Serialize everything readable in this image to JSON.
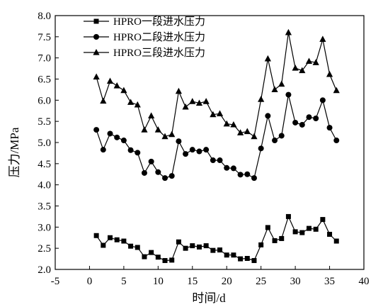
{
  "chart_data": {
    "type": "line",
    "xlabel": "时间/d",
    "ylabel": "压力/MPa",
    "xlim": [
      -5,
      40
    ],
    "ylim": [
      2.0,
      8.0
    ],
    "xticks": [
      -5,
      0,
      5,
      10,
      15,
      20,
      25,
      30,
      35,
      40
    ],
    "yticks": [
      2.0,
      2.5,
      3.0,
      3.5,
      4.0,
      4.5,
      5.0,
      5.5,
      6.0,
      6.5,
      7.0,
      7.5,
      8.0
    ],
    "grid": false,
    "legend_position": "top-left",
    "series": [
      {
        "name": "HPRO一段进水压力",
        "marker": "square",
        "x": [
          1,
          2,
          3,
          4,
          5,
          6,
          7,
          8,
          9,
          10,
          11,
          12,
          13,
          14,
          15,
          16,
          17,
          18,
          19,
          20,
          21,
          22,
          23,
          24,
          25,
          26,
          27,
          28,
          29,
          30,
          31,
          32,
          33,
          34,
          35,
          36
        ],
        "y": [
          2.8,
          2.57,
          2.75,
          2.7,
          2.67,
          2.55,
          2.52,
          2.3,
          2.4,
          2.29,
          2.21,
          2.22,
          2.65,
          2.5,
          2.56,
          2.53,
          2.56,
          2.45,
          2.46,
          2.34,
          2.34,
          2.25,
          2.26,
          2.21,
          2.58,
          2.99,
          2.68,
          2.73,
          3.25,
          2.89,
          2.87,
          2.97,
          2.95,
          3.18,
          2.83,
          2.67
        ]
      },
      {
        "name": "HPRO二段进水压力",
        "marker": "circle",
        "x": [
          1,
          2,
          3,
          4,
          5,
          6,
          7,
          8,
          9,
          10,
          11,
          12,
          13,
          14,
          15,
          16,
          17,
          18,
          19,
          20,
          21,
          22,
          23,
          24,
          25,
          26,
          27,
          28,
          29,
          30,
          31,
          32,
          33,
          34,
          35,
          36
        ],
        "y": [
          5.3,
          4.83,
          5.21,
          5.12,
          5.05,
          4.82,
          4.76,
          4.28,
          4.55,
          4.3,
          4.16,
          4.21,
          5.03,
          4.73,
          4.83,
          4.79,
          4.83,
          4.58,
          4.58,
          4.4,
          4.39,
          4.24,
          4.25,
          4.16,
          4.86,
          5.63,
          5.05,
          5.16,
          6.13,
          5.47,
          5.42,
          5.6,
          5.57,
          6.0,
          5.35,
          5.05
        ]
      },
      {
        "name": "HPRO三段进水压力",
        "marker": "triangle",
        "x": [
          1,
          2,
          3,
          4,
          5,
          6,
          7,
          8,
          9,
          10,
          11,
          12,
          13,
          14,
          15,
          16,
          17,
          18,
          19,
          20,
          21,
          22,
          23,
          24,
          25,
          26,
          27,
          28,
          29,
          30,
          31,
          32,
          33,
          34,
          35,
          36
        ],
        "y": [
          6.55,
          5.98,
          6.45,
          6.34,
          6.23,
          5.95,
          5.89,
          5.3,
          5.63,
          5.3,
          5.14,
          5.19,
          6.21,
          5.84,
          5.97,
          5.93,
          5.97,
          5.66,
          5.68,
          5.44,
          5.42,
          5.23,
          5.26,
          5.14,
          6.02,
          6.98,
          6.25,
          6.38,
          7.6,
          6.76,
          6.7,
          6.92,
          6.89,
          7.44,
          6.61,
          6.23
        ]
      }
    ]
  }
}
